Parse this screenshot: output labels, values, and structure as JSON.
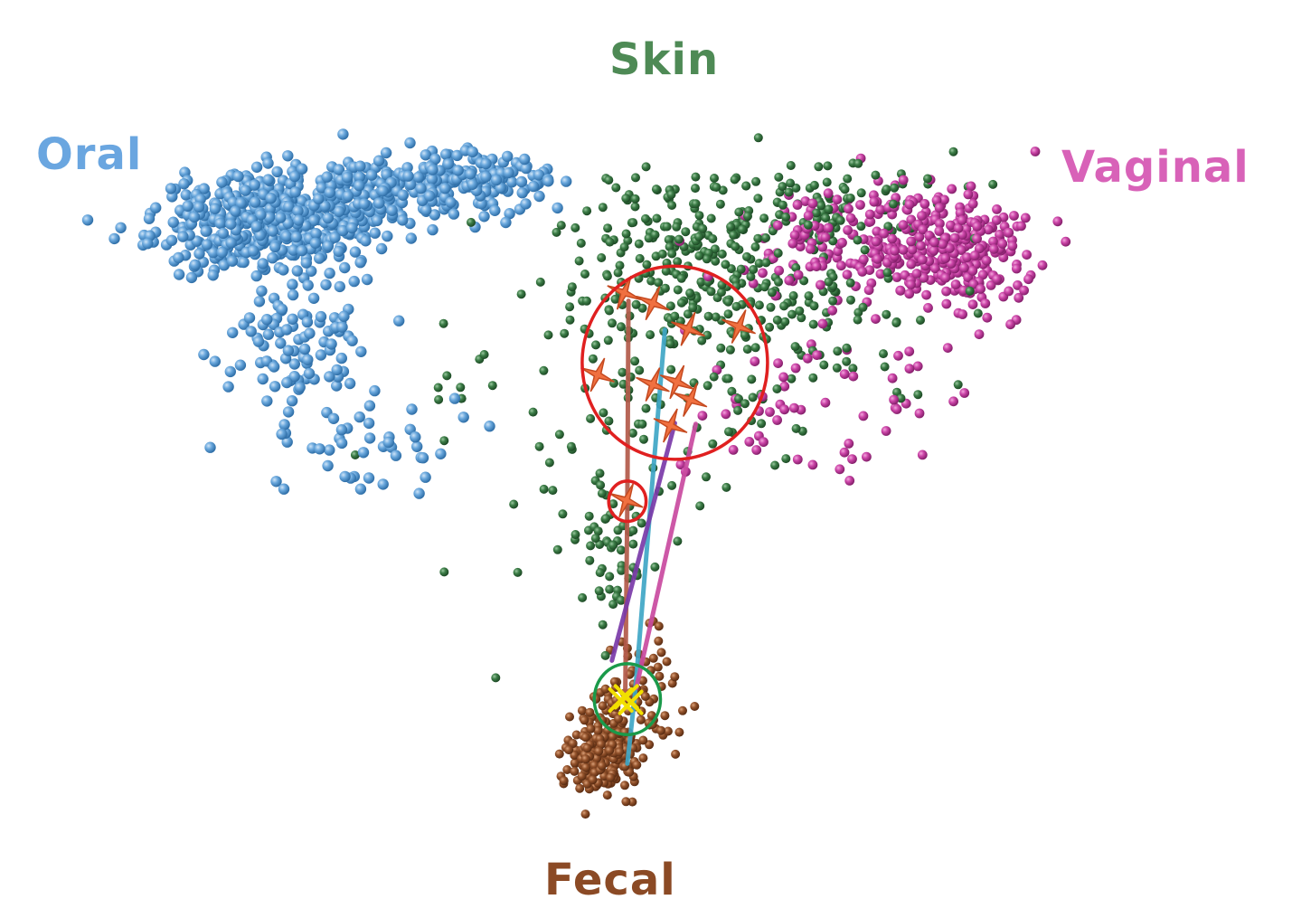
{
  "chart_data": {
    "type": "scatter",
    "title": "",
    "xlabel": "",
    "ylabel": "",
    "grid": false,
    "axes_visible": false,
    "xlim": [
      0,
      100
    ],
    "ylim": [
      0,
      100
    ],
    "labels": {
      "oral": "Oral",
      "skin": "Skin",
      "vaginal": "Vaginal",
      "fecal": "Fecal"
    },
    "colors": {
      "oral": "#5b9bd5",
      "skin": "#2e6b3a",
      "vaginal": "#c73da2",
      "fecal": "#8b4a25",
      "oral_label": "#6aa6e0",
      "skin_label": "#4e8a55",
      "vaginal_label": "#d862b8",
      "fecal_label": "#8b4a25",
      "infant_marker": "#f07040",
      "infant_marker_stroke": "#c54a20",
      "highlight_red": "#e02020",
      "highlight_green": "#1a9a4a",
      "adult_cross": "#f2e000"
    },
    "series": [
      {
        "key": "oral",
        "count": 900,
        "clusters": [
          {
            "cx": 17,
            "cy": 80,
            "sx": 5.0,
            "sy": 3.0
          },
          {
            "cx": 27,
            "cy": 84,
            "sx": 5.5,
            "sy": 2.2
          },
          {
            "cx": 35,
            "cy": 86,
            "sx": 4.0,
            "sy": 1.6
          },
          {
            "cx": 19,
            "cy": 65,
            "sx": 3.0,
            "sy": 3.2
          },
          {
            "cx": 26,
            "cy": 52,
            "sx": 5.0,
            "sy": 4.0
          }
        ],
        "weights": [
          0.46,
          0.22,
          0.12,
          0.12,
          0.08
        ]
      },
      {
        "key": "skin",
        "count": 560,
        "clusters": [
          {
            "cx": 54,
            "cy": 77,
            "sx": 6.0,
            "sy": 5.0
          },
          {
            "cx": 63,
            "cy": 69,
            "sx": 7.0,
            "sy": 5.5
          },
          {
            "cx": 49,
            "cy": 55,
            "sx": 9.0,
            "sy": 8.0
          },
          {
            "cx": 68,
            "cy": 82,
            "sx": 6.0,
            "sy": 3.0
          },
          {
            "cx": 48,
            "cy": 40,
            "sx": 2.5,
            "sy": 5.0
          }
        ],
        "weights": [
          0.3,
          0.3,
          0.16,
          0.16,
          0.08
        ]
      },
      {
        "key": "vaginal",
        "count": 460,
        "clusters": [
          {
            "cx": 72,
            "cy": 78,
            "sx": 6.0,
            "sy": 3.5
          },
          {
            "cx": 80,
            "cy": 76,
            "sx": 3.0,
            "sy": 3.5
          },
          {
            "cx": 66,
            "cy": 58,
            "sx": 6.0,
            "sy": 5.0
          }
        ],
        "weights": [
          0.5,
          0.38,
          0.12
        ]
      },
      {
        "key": "fecal",
        "count": 300,
        "clusters": [
          {
            "cx": 47,
            "cy": 14,
            "sx": 1.5,
            "sy": 2.2
          },
          {
            "cx": 50,
            "cy": 21,
            "sx": 2.2,
            "sy": 4.0
          }
        ],
        "weights": [
          0.68,
          0.32
        ]
      }
    ],
    "infant_samples": [
      {
        "x": 49.2,
        "y": 71.5
      },
      {
        "x": 51.8,
        "y": 70.2
      },
      {
        "x": 55.0,
        "y": 67.0
      },
      {
        "x": 59.6,
        "y": 67.3
      },
      {
        "x": 46.8,
        "y": 61.3
      },
      {
        "x": 51.8,
        "y": 60.1
      },
      {
        "x": 54.0,
        "y": 60.4
      },
      {
        "x": 55.2,
        "y": 58.2
      },
      {
        "x": 53.4,
        "y": 55.0
      },
      {
        "x": 49.4,
        "y": 45.7
      }
    ],
    "trajectories": [
      {
        "color": "#b25a4a",
        "points": [
          [
            49.6,
            70.5
          ],
          [
            49.5,
            45.7
          ],
          [
            49.3,
            21.0
          ]
        ]
      },
      {
        "color": "#3fa6c6",
        "points": [
          [
            52.9,
            66.9
          ],
          [
            50.2,
            21.8
          ],
          [
            49.5,
            13.0
          ]
        ]
      },
      {
        "color": "#7a3aa8",
        "points": [
          [
            53.8,
            55.3
          ],
          [
            48.1,
            25.8
          ]
        ]
      },
      {
        "color": "#c94aa0",
        "points": [
          [
            55.7,
            55.2
          ],
          [
            50.3,
            22.4
          ]
        ]
      }
    ],
    "highlight_regions": [
      {
        "color_key": "highlight_red",
        "cx": 53.8,
        "cy": 62.8,
        "rx": 8.4,
        "ry": 12.0
      },
      {
        "color_key": "highlight_red",
        "cx": 49.5,
        "cy": 45.6,
        "rx": 1.7,
        "ry": 2.5
      },
      {
        "color_key": "highlight_green",
        "cx": 49.5,
        "cy": 21.0,
        "rx": 3.0,
        "ry": 4.4
      }
    ],
    "adult_crosses": [
      {
        "x": 49.4,
        "y": 21.3
      },
      {
        "x": 49.8,
        "y": 20.6
      },
      {
        "x": 48.9,
        "y": 20.9
      }
    ]
  }
}
